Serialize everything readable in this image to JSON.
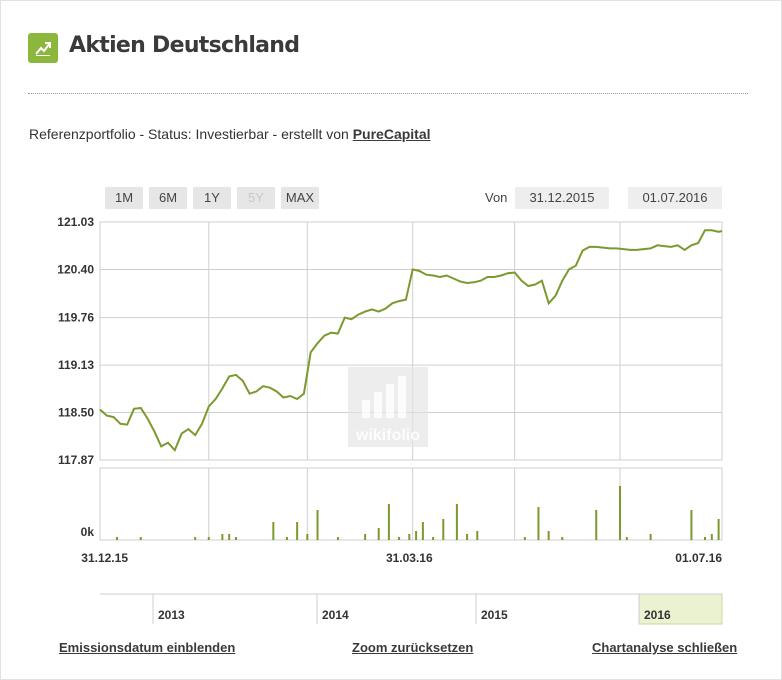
{
  "header": {
    "title": "Aktien Deutschland",
    "icon": "trending-up-icon",
    "icon_color": "#8cb63c"
  },
  "subline": {
    "text": "Referenzportfolio - Status: Investierbar - erstellt von",
    "author": "PureCapital"
  },
  "range_buttons": [
    {
      "label": "1M",
      "enabled": true
    },
    {
      "label": "6M",
      "enabled": true
    },
    {
      "label": "1Y",
      "enabled": true
    },
    {
      "label": "5Y",
      "enabled": false
    },
    {
      "label": "MAX",
      "enabled": true
    }
  ],
  "date_range": {
    "label": "Von",
    "from": "31.12.2015",
    "to": "01.07.2016"
  },
  "watermark": "wikifolio",
  "chart_data": {
    "type": "line",
    "title": "",
    "xlabel": "",
    "ylabel": "",
    "line_color": "#7a9a2e",
    "grid": true,
    "ylim": [
      117.87,
      121.03
    ],
    "y_ticks": [
      "121.03",
      "120.40",
      "119.76",
      "119.13",
      "118.50",
      "117.87"
    ],
    "x_range": [
      "2015-12-31",
      "2016-07-01"
    ],
    "x_tick_labels": [
      {
        "date": "2015-12-31",
        "label": "31.12.15"
      },
      {
        "date": "2016-03-31",
        "label": "31.03.16"
      },
      {
        "date": "2016-07-01",
        "label": "01.07.16"
      }
    ],
    "series": [
      {
        "x": [
          "2015-12-31",
          "2016-01-02",
          "2016-01-04",
          "2016-01-06",
          "2016-01-08",
          "2016-01-10",
          "2016-01-12",
          "2016-01-14",
          "2016-01-16",
          "2016-01-18",
          "2016-01-20",
          "2016-01-22",
          "2016-01-24",
          "2016-01-26",
          "2016-01-28",
          "2016-01-30",
          "2016-02-01",
          "2016-02-03",
          "2016-02-05",
          "2016-02-07",
          "2016-02-09",
          "2016-02-11",
          "2016-02-13",
          "2016-02-15",
          "2016-02-17",
          "2016-02-19",
          "2016-02-21",
          "2016-02-23",
          "2016-02-25",
          "2016-02-27",
          "2016-02-29",
          "2016-03-02",
          "2016-03-04",
          "2016-03-06",
          "2016-03-08",
          "2016-03-10",
          "2016-03-12",
          "2016-03-14",
          "2016-03-16",
          "2016-03-18",
          "2016-03-20",
          "2016-03-22",
          "2016-03-24",
          "2016-03-26",
          "2016-03-28",
          "2016-03-30",
          "2016-04-01",
          "2016-04-03",
          "2016-04-05",
          "2016-04-07",
          "2016-04-09",
          "2016-04-11",
          "2016-04-13",
          "2016-04-15",
          "2016-04-17",
          "2016-04-19",
          "2016-04-21",
          "2016-04-23",
          "2016-04-25",
          "2016-04-27",
          "2016-04-29",
          "2016-05-01",
          "2016-05-03",
          "2016-05-05",
          "2016-05-07",
          "2016-05-09",
          "2016-05-11",
          "2016-05-13",
          "2016-05-15",
          "2016-05-17",
          "2016-05-19",
          "2016-05-21",
          "2016-05-23",
          "2016-05-25",
          "2016-05-27",
          "2016-05-29",
          "2016-05-31",
          "2016-06-02",
          "2016-06-04",
          "2016-06-06",
          "2016-06-08",
          "2016-06-10",
          "2016-06-12",
          "2016-06-14",
          "2016-06-16",
          "2016-06-18",
          "2016-06-20",
          "2016-06-22",
          "2016-06-24",
          "2016-06-26",
          "2016-06-28",
          "2016-06-30",
          "2016-07-01"
        ],
        "y": [
          118.54,
          118.46,
          118.44,
          118.35,
          118.34,
          118.55,
          118.56,
          118.42,
          118.25,
          118.05,
          118.1,
          118.0,
          118.22,
          118.28,
          118.2,
          118.35,
          118.58,
          118.68,
          118.82,
          118.98,
          119.0,
          118.92,
          118.75,
          118.78,
          118.85,
          118.83,
          118.78,
          118.7,
          118.72,
          118.68,
          118.75,
          119.3,
          119.42,
          119.52,
          119.56,
          119.55,
          119.76,
          119.74,
          119.8,
          119.84,
          119.87,
          119.84,
          119.88,
          119.95,
          119.98,
          120.0,
          120.4,
          120.38,
          120.33,
          120.32,
          120.3,
          120.32,
          120.28,
          120.24,
          120.22,
          120.23,
          120.25,
          120.3,
          120.3,
          120.32,
          120.35,
          120.36,
          120.25,
          120.18,
          120.2,
          120.25,
          119.95,
          120.05,
          120.25,
          120.4,
          120.45,
          120.65,
          120.7,
          120.7,
          120.69,
          120.68,
          120.68,
          120.67,
          120.66,
          120.66,
          120.67,
          120.68,
          120.72,
          120.71,
          120.7,
          120.72,
          120.66,
          120.72,
          120.75,
          120.92,
          120.92,
          120.9,
          120.91
        ]
      }
    ],
    "volume": {
      "label": "0k",
      "x": [
        "2016-01-05",
        "2016-01-12",
        "2016-01-28",
        "2016-02-01",
        "2016-02-05",
        "2016-02-07",
        "2016-02-09",
        "2016-02-20",
        "2016-02-24",
        "2016-02-27",
        "2016-03-01",
        "2016-03-04",
        "2016-03-10",
        "2016-03-18",
        "2016-03-22",
        "2016-03-25",
        "2016-03-28",
        "2016-03-31",
        "2016-04-02",
        "2016-04-04",
        "2016-04-07",
        "2016-04-10",
        "2016-04-14",
        "2016-04-17",
        "2016-04-20",
        "2016-05-04",
        "2016-05-08",
        "2016-05-11",
        "2016-05-15",
        "2016-05-25",
        "2016-06-01",
        "2016-06-03",
        "2016-06-10",
        "2016-06-22",
        "2016-06-26",
        "2016-06-28",
        "2016-06-30"
      ],
      "values": [
        1,
        1,
        1,
        1,
        2,
        2,
        1,
        6,
        1,
        6,
        2,
        10,
        1,
        2,
        4,
        12,
        1,
        2,
        3,
        6,
        1,
        7,
        12,
        2,
        3,
        1,
        11,
        3,
        1,
        10,
        18,
        1,
        2,
        10,
        1,
        2,
        7
      ]
    }
  },
  "navigator": {
    "years": [
      "2013",
      "2014",
      "2015",
      "2016"
    ],
    "selected_year": "2016",
    "highlight_color": "#eaf2d2"
  },
  "bottom_links": {
    "emission": "Emissionsdatum einblenden",
    "zoom": "Zoom zurücksetzen",
    "close": "Chartanalyse schließen"
  }
}
